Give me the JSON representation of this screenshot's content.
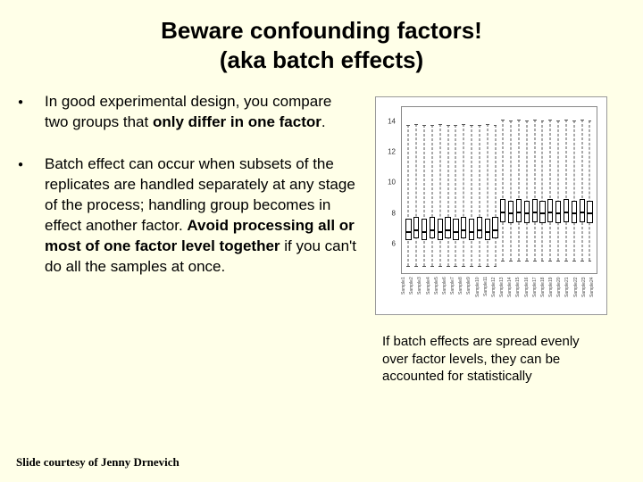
{
  "title_line1": "Beware confounding factors!",
  "title_line2": "(aka batch effects)",
  "bullets": [
    {
      "pre": "In good experimental design, you compare two groups that ",
      "bold": "only differ in one factor",
      "post": "."
    },
    {
      "pre": "Batch effect can occur when subsets of the replicates are handled separately at any stage of the process; handling group becomes in effect another factor. ",
      "bold": "Avoid processing all or most of one factor level together",
      "post": " if you can't do all the samples at once."
    }
  ],
  "caption": "If batch effects are spread evenly over factor levels, they can be accounted for statistically",
  "footer": "Slide courtesy of Jenny Drnevich",
  "chart": {
    "type": "boxplot",
    "background_color": "#ffffff",
    "border_color": "#888888",
    "whisker_color": "#555555",
    "box_border_color": "#000000",
    "box_fill_color": "#ffffff",
    "y_min": 4,
    "y_max": 15,
    "y_ticks": [
      6,
      8,
      10,
      12,
      14
    ],
    "x_labels": [
      "Sample1",
      "Sample2",
      "Sample3",
      "Sample4",
      "Sample5",
      "Sample6",
      "Sample7",
      "Sample8",
      "Sample9",
      "Sample10",
      "Sample11",
      "Sample12",
      "Sample13",
      "Sample14",
      "Sample15",
      "Sample16",
      "Sample17",
      "Sample18",
      "Sample19",
      "Sample20",
      "Sample21",
      "Sample22",
      "Sample23",
      "Sample24"
    ],
    "boxes": [
      {
        "low": 4.5,
        "q1": 6.2,
        "med": 6.8,
        "q3": 7.6,
        "high": 13.8
      },
      {
        "low": 4.5,
        "q1": 6.3,
        "med": 6.9,
        "q3": 7.7,
        "high": 13.9
      },
      {
        "low": 4.5,
        "q1": 6.2,
        "med": 6.8,
        "q3": 7.6,
        "high": 13.8
      },
      {
        "low": 4.5,
        "q1": 6.3,
        "med": 6.9,
        "q3": 7.7,
        "high": 13.8
      },
      {
        "low": 4.5,
        "q1": 6.2,
        "med": 6.8,
        "q3": 7.6,
        "high": 13.9
      },
      {
        "low": 4.5,
        "q1": 6.3,
        "med": 6.9,
        "q3": 7.7,
        "high": 13.8
      },
      {
        "low": 4.5,
        "q1": 6.2,
        "med": 6.8,
        "q3": 7.6,
        "high": 13.8
      },
      {
        "low": 4.5,
        "q1": 6.3,
        "med": 6.9,
        "q3": 7.7,
        "high": 13.9
      },
      {
        "low": 4.5,
        "q1": 6.2,
        "med": 6.8,
        "q3": 7.6,
        "high": 13.8
      },
      {
        "low": 4.5,
        "q1": 6.3,
        "med": 6.9,
        "q3": 7.7,
        "high": 13.8
      },
      {
        "low": 4.5,
        "q1": 6.2,
        "med": 6.8,
        "q3": 7.6,
        "high": 13.9
      },
      {
        "low": 4.5,
        "q1": 6.3,
        "med": 6.9,
        "q3": 7.7,
        "high": 13.8
      },
      {
        "low": 4.8,
        "q1": 7.4,
        "med": 8.1,
        "q3": 8.9,
        "high": 14.2
      },
      {
        "low": 4.8,
        "q1": 7.3,
        "med": 8.0,
        "q3": 8.8,
        "high": 14.1
      },
      {
        "low": 4.8,
        "q1": 7.4,
        "med": 8.1,
        "q3": 8.9,
        "high": 14.2
      },
      {
        "low": 4.8,
        "q1": 7.3,
        "med": 8.0,
        "q3": 8.8,
        "high": 14.1
      },
      {
        "low": 4.8,
        "q1": 7.4,
        "med": 8.1,
        "q3": 8.9,
        "high": 14.2
      },
      {
        "low": 4.8,
        "q1": 7.3,
        "med": 8.0,
        "q3": 8.8,
        "high": 14.1
      },
      {
        "low": 4.8,
        "q1": 7.4,
        "med": 8.1,
        "q3": 8.9,
        "high": 14.2
      },
      {
        "low": 4.8,
        "q1": 7.3,
        "med": 8.0,
        "q3": 8.8,
        "high": 14.1
      },
      {
        "low": 4.8,
        "q1": 7.4,
        "med": 8.1,
        "q3": 8.9,
        "high": 14.2
      },
      {
        "low": 4.8,
        "q1": 7.3,
        "med": 8.0,
        "q3": 8.8,
        "high": 14.1
      },
      {
        "low": 4.8,
        "q1": 7.4,
        "med": 8.1,
        "q3": 8.9,
        "high": 14.2
      },
      {
        "low": 4.8,
        "q1": 7.3,
        "med": 8.0,
        "q3": 8.8,
        "high": 14.1
      }
    ]
  }
}
